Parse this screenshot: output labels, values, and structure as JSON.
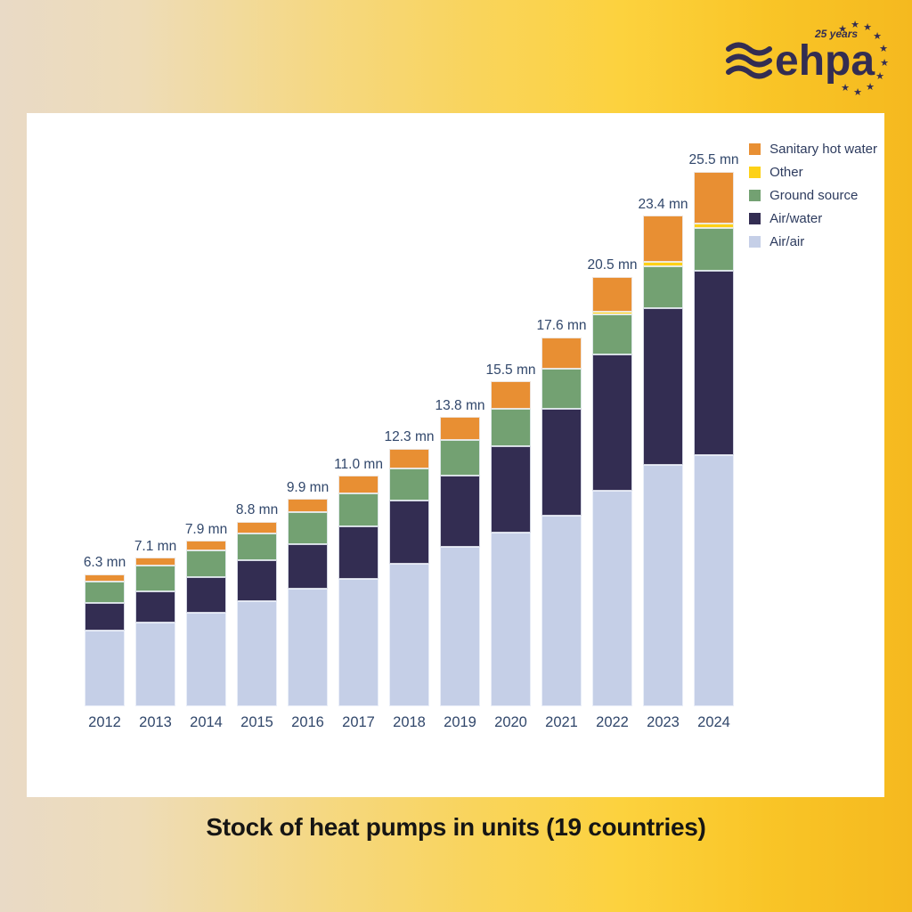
{
  "logo": {
    "brand": "ehpa",
    "tagline": "25 years",
    "color": "#332d52"
  },
  "title": "Stock of heat pumps in units (19 countries)",
  "colors": {
    "background_left": "#e9dac6",
    "background_right": "#f5b91f",
    "panel": "#ffffff",
    "text": "#31476b",
    "title_text": "#161514",
    "sanitary_hot_water": "#e88f33",
    "other": "#fdd117",
    "ground_source": "#73a172",
    "air_water": "#332d52",
    "air_air": "#c5cfe7"
  },
  "chart_data": {
    "type": "bar",
    "stacked": true,
    "unit": "mn",
    "grid": false,
    "legend_position": "top-right",
    "categories": [
      "2012",
      "2013",
      "2014",
      "2015",
      "2016",
      "2017",
      "2018",
      "2019",
      "2020",
      "2021",
      "2022",
      "2023",
      "2024"
    ],
    "series": [
      {
        "name": "Air/air",
        "color": "#c5cfe7",
        "values": [
          3.6,
          4.0,
          4.45,
          5.0,
          5.6,
          6.1,
          6.8,
          7.6,
          8.3,
          9.1,
          10.3,
          11.5,
          12.0
        ]
      },
      {
        "name": "Air/water",
        "color": "#332d52",
        "values": [
          1.35,
          1.5,
          1.7,
          1.95,
          2.15,
          2.5,
          3.0,
          3.4,
          4.1,
          5.1,
          6.5,
          7.5,
          8.8
        ]
      },
      {
        "name": "Ground source",
        "color": "#73a172",
        "values": [
          1.0,
          1.2,
          1.3,
          1.3,
          1.5,
          1.55,
          1.55,
          1.7,
          1.8,
          1.9,
          1.9,
          2.0,
          2.0
        ]
      },
      {
        "name": "Other",
        "color": "#fdd117",
        "values": [
          0,
          0,
          0,
          0,
          0,
          0,
          0,
          0,
          0,
          0,
          0.15,
          0.2,
          0.25
        ]
      },
      {
        "name": "Sanitary hot water",
        "color": "#e88f33",
        "values": [
          0.35,
          0.4,
          0.45,
          0.55,
          0.65,
          0.85,
          0.95,
          1.1,
          1.3,
          1.5,
          1.65,
          2.2,
          2.45
        ]
      }
    ],
    "totals": [
      "6.3 mn",
      "7.1 mn",
      "7.9 mn",
      "8.8 mn",
      "9.9 mn",
      "11.0 mn",
      "12.3 mn",
      "13.8 mn",
      "15.5 mn",
      "17.6 mn",
      "20.5 mn",
      "23.4 mn",
      "25.5 mn"
    ],
    "totals_numeric": [
      6.3,
      7.1,
      7.9,
      8.8,
      9.9,
      11.0,
      12.3,
      13.8,
      15.5,
      17.6,
      20.5,
      23.4,
      25.5
    ],
    "legend_order": [
      "Sanitary hot water",
      "Other",
      "Ground source",
      "Air/water",
      "Air/air"
    ]
  }
}
